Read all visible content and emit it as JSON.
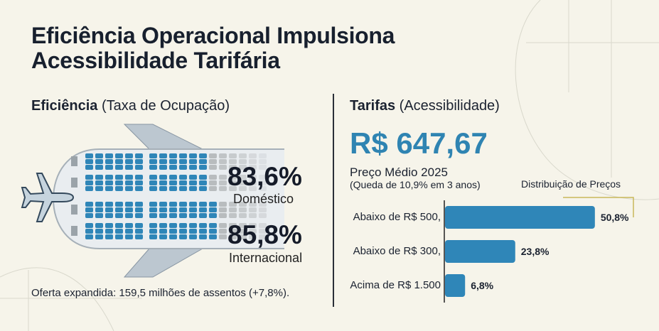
{
  "title_line1": "Eficiência Operacional Impulsiona",
  "title_line2": "Acessibilidade Tarifária",
  "efficiency": {
    "heading_bold": "Eficiência",
    "heading_rest": "(Taxa de Ocupação)",
    "domestic_value": "83,6%",
    "domestic_label": "Doméstico",
    "international_value": "85,8%",
    "international_label": "Internacional",
    "footnote": "Oferta expandida: 159,5 milhões de assentos (+7,8%)."
  },
  "fares": {
    "heading_bold": "Tarifas",
    "heading_rest": "(Acessibilidade)",
    "average_price": "R$ 647,67",
    "average_label": "Preço Médio 2025",
    "change_note": "(Queda de 10,9% em 3 anos)",
    "distribution_label": "Distribuição de Preços"
  },
  "colors": {
    "accent": "#2f84b2",
    "bar": "#2f86b8",
    "seat_filled": "#2f86b8",
    "seat_empty": "#b8bcbe",
    "text": "#18202e"
  },
  "chart_data": {
    "type": "bar",
    "orientation": "horizontal",
    "title": "Distribuição de Preços",
    "categories": [
      "Abaixo de R$ 500,",
      "Abaixo de R$ 300,",
      "Acima de R$ 1.500"
    ],
    "values": [
      50.8,
      23.8,
      6.8
    ],
    "value_labels": [
      "50,8%",
      "23,8%",
      "6,8%"
    ],
    "unit": "%",
    "grid": false
  }
}
